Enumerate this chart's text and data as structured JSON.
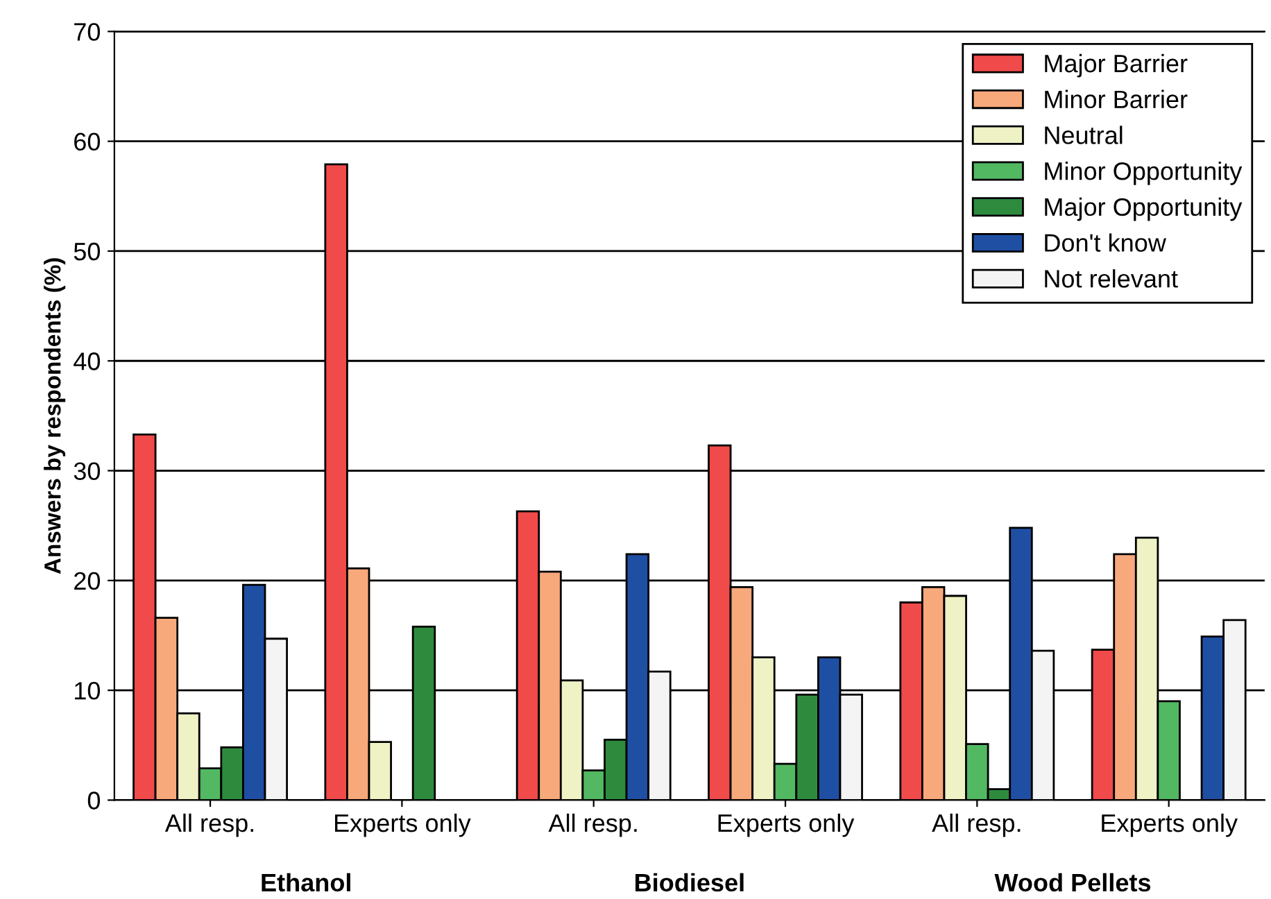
{
  "chart_data": {
    "type": "bar",
    "ylabel": "Answers by respondents (%)",
    "categories": [
      "All resp.",
      "Experts only",
      "All resp.",
      "Experts only",
      "All resp.",
      "Experts only"
    ],
    "series": [
      {
        "name": "Major Barrier",
        "color": "#f04a4a",
        "values": [
          33.3,
          57.9,
          26.3,
          32.3,
          18.0,
          13.7
        ]
      },
      {
        "name": "Minor Barrier",
        "color": "#f7a97c",
        "values": [
          16.6,
          21.1,
          20.8,
          19.4,
          19.4,
          22.4
        ]
      },
      {
        "name": "Neutral",
        "color": "#eef2c4",
        "values": [
          7.9,
          5.3,
          10.9,
          13.0,
          18.6,
          23.9
        ]
      },
      {
        "name": "Minor Opportunity",
        "color": "#52b862",
        "values": [
          2.9,
          0,
          2.7,
          3.3,
          5.1,
          9.0
        ]
      },
      {
        "name": "Major Opportunity",
        "color": "#2e8b3e",
        "values": [
          4.8,
          15.8,
          5.5,
          9.6,
          1.0,
          0
        ]
      },
      {
        "name": "Don't know",
        "color": "#1f4fa3",
        "values": [
          19.6,
          0,
          22.4,
          13.0,
          24.8,
          14.9
        ]
      },
      {
        "name": "Not relevant",
        "color": "#f4f4f4",
        "values": [
          14.7,
          0,
          11.7,
          9.6,
          13.6,
          16.4
        ]
      }
    ],
    "ylim": [
      0,
      70
    ],
    "yticks": [
      0,
      10,
      20,
      30,
      40,
      50,
      60,
      70
    ],
    "grid": "y",
    "legend": "top right",
    "annotations": [
      "Ethanol",
      "Biodiesel",
      "Wood Pellets"
    ]
  }
}
